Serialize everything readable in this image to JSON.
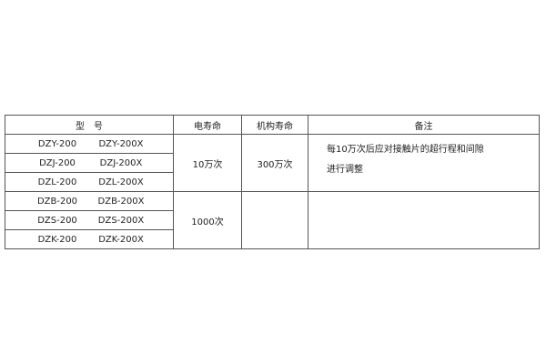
{
  "headers": [
    "型　号",
    "电寿命",
    "机构寿命",
    "备注"
  ],
  "rows": [
    {
      "a": "DZY-200",
      "b": "DZY-200X"
    },
    {
      "a": "DZJ-200",
      "b": "DZJ-200X"
    },
    {
      "a": "DZL-200",
      "b": "DZL-200X"
    },
    {
      "a": "DZB-200",
      "b": "DZB-200X"
    },
    {
      "a": "DZS-200",
      "b": "DZS-200X"
    },
    {
      "a": "DZK-200",
      "b": "DZK-200X"
    }
  ],
  "group1": {
    "electrical": "10万次",
    "mechanical": "300万次",
    "note_line1": "每10万次后应对接触片的超行程和间隙",
    "note_line2": "进行调整"
  },
  "group2": {
    "electrical": "1000次",
    "mechanical": "",
    "note": ""
  }
}
